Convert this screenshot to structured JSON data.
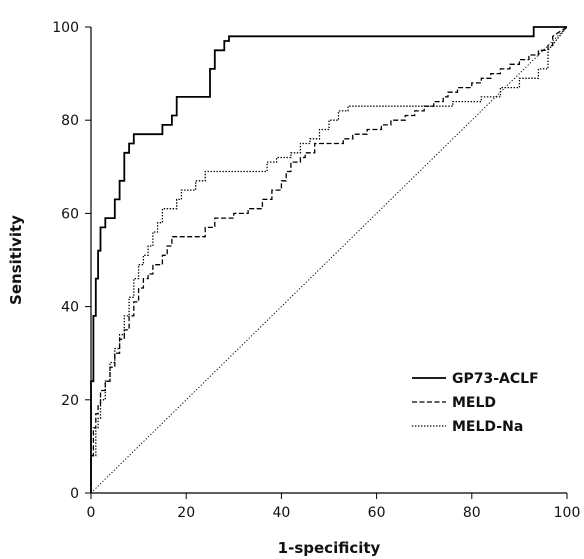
{
  "chart_data": {
    "type": "line",
    "title": "",
    "xlabel": "1-specificity",
    "ylabel": "Sensitivity",
    "xlim": [
      0,
      100
    ],
    "ylim": [
      0,
      100
    ],
    "xticks": [
      "0",
      "20",
      "40",
      "60",
      "80",
      "100"
    ],
    "yticks": [
      "0",
      "20",
      "40",
      "60",
      "80",
      "100"
    ],
    "legend_position": "bottom-right",
    "grid": false,
    "reference_line": {
      "x": [
        0,
        100
      ],
      "y": [
        0,
        100
      ],
      "style": "dotted"
    },
    "series": [
      {
        "name": "GP73-ACLF",
        "style": "solid",
        "color": "#000000",
        "x": [
          0,
          0,
          0.5,
          0.5,
          1,
          1,
          1.5,
          1.5,
          2,
          2,
          3,
          3,
          5,
          5,
          6,
          6,
          7,
          7,
          8,
          8,
          9,
          9,
          11,
          11,
          15,
          15,
          17,
          17,
          18,
          18,
          25,
          25,
          26,
          26,
          28,
          28,
          29,
          29,
          93,
          93,
          100
        ],
        "y": [
          0,
          24,
          24,
          38,
          38,
          46,
          46,
          52,
          52,
          57,
          57,
          59,
          59,
          63,
          63,
          67,
          67,
          73,
          73,
          75,
          75,
          77,
          77,
          77,
          77,
          79,
          79,
          81,
          81,
          85,
          85,
          91,
          91,
          95,
          95,
          97,
          97,
          98,
          98,
          100,
          100
        ]
      },
      {
        "name": "MELD",
        "style": "dashed",
        "color": "#000000",
        "x": [
          0,
          0,
          0.5,
          0.5,
          1,
          1,
          1.5,
          1.5,
          2,
          2,
          3,
          3,
          4,
          4,
          5,
          5,
          6,
          6,
          7,
          7,
          8,
          8,
          9,
          9,
          10,
          10,
          11,
          11,
          12,
          12,
          13,
          13,
          15,
          15,
          16,
          16,
          17,
          17,
          24,
          24,
          26,
          26,
          30,
          30,
          33,
          33,
          36,
          36,
          38,
          38,
          40,
          40,
          41,
          41,
          42,
          42,
          44,
          44,
          45,
          45,
          47,
          47,
          53,
          53,
          55,
          55,
          58,
          58,
          61,
          61,
          63,
          63,
          66,
          66,
          68,
          68,
          70,
          70,
          72,
          72,
          74,
          74,
          75,
          75,
          77,
          77,
          80,
          80,
          82,
          82,
          84,
          84,
          86,
          86,
          88,
          88,
          90,
          90,
          92,
          92,
          94,
          94,
          96,
          96,
          97,
          97,
          100
        ],
        "y": [
          0,
          8,
          8,
          14,
          14,
          17,
          17,
          19,
          19,
          22,
          22,
          24,
          24,
          27,
          27,
          30,
          30,
          33,
          33,
          35,
          35,
          38,
          38,
          41,
          41,
          44,
          44,
          46,
          46,
          47,
          47,
          49,
          49,
          51,
          51,
          53,
          53,
          55,
          55,
          57,
          57,
          59,
          59,
          60,
          60,
          61,
          61,
          63,
          63,
          65,
          65,
          67,
          67,
          69,
          69,
          71,
          71,
          72,
          72,
          73,
          73,
          75,
          75,
          76,
          76,
          77,
          77,
          78,
          78,
          79,
          79,
          80,
          80,
          81,
          81,
          82,
          82,
          83,
          83,
          84,
          84,
          85,
          85,
          86,
          86,
          87,
          87,
          88,
          88,
          89,
          89,
          90,
          90,
          91,
          91,
          92,
          92,
          93,
          93,
          94,
          94,
          95,
          95,
          96,
          96,
          98,
          100
        ]
      },
      {
        "name": "MELD-Na",
        "style": "dotted",
        "color": "#000000",
        "x": [
          0,
          0,
          1,
          1,
          1.5,
          1.5,
          2,
          2,
          3,
          3,
          4,
          4,
          5,
          5,
          6,
          6,
          7,
          7,
          8,
          8,
          9,
          9,
          10,
          10,
          11,
          11,
          12,
          12,
          13,
          13,
          14,
          14,
          15,
          15,
          17,
          17,
          18,
          18,
          19,
          19,
          22,
          22,
          24,
          24,
          37,
          37,
          39,
          39,
          42,
          42,
          44,
          44,
          46,
          46,
          48,
          48,
          50,
          50,
          52,
          52,
          54,
          54,
          74,
          74,
          76,
          76,
          82,
          82,
          86,
          86,
          90,
          90,
          94,
          94,
          96,
          96,
          100
        ],
        "y": [
          0,
          8,
          8,
          14,
          14,
          16,
          16,
          20,
          20,
          24,
          24,
          28,
          28,
          31,
          31,
          34,
          34,
          38,
          38,
          42,
          42,
          46,
          46,
          49,
          49,
          51,
          51,
          53,
          53,
          56,
          56,
          58,
          58,
          61,
          61,
          61,
          61,
          63,
          63,
          65,
          65,
          67,
          67,
          69,
          69,
          71,
          71,
          72,
          72,
          73,
          73,
          75,
          75,
          76,
          76,
          78,
          78,
          80,
          80,
          82,
          82,
          83,
          83,
          83,
          83,
          84,
          84,
          85,
          85,
          87,
          87,
          89,
          89,
          91,
          91,
          95,
          100
        ]
      }
    ]
  }
}
